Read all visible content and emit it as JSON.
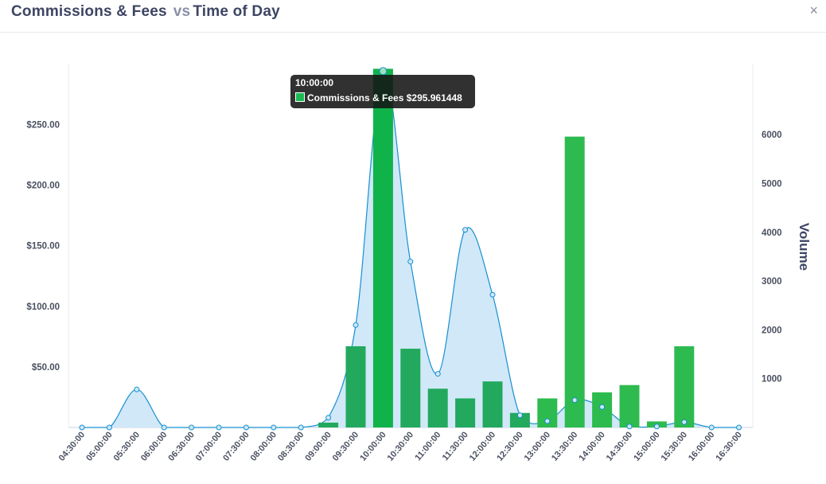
{
  "header": {
    "title_left": "Commissions & Fees",
    "title_vs": "vs",
    "title_right": "Time of Day",
    "close_label": "×"
  },
  "tooltip": {
    "time": "10:00:00",
    "series_label": "Commissions & Fees",
    "value": "$295.961448",
    "swatch_color": "#1db954"
  },
  "colors": {
    "bar": "#2dbb4f",
    "bar_dark": "#22a95e",
    "bar_highlight": "#0fb34a",
    "area_fill": "#cfe7f8",
    "line": "#1690d0"
  },
  "chart_data": {
    "type": "bar+area",
    "x": [
      "04:30:00",
      "05:00:00",
      "05:30:00",
      "06:00:00",
      "06:30:00",
      "07:00:00",
      "07:30:00",
      "08:00:00",
      "08:30:00",
      "09:00:00",
      "09:30:00",
      "10:00:00",
      "10:30:00",
      "11:00:00",
      "11:30:00",
      "12:00:00",
      "12:30:00",
      "13:00:00",
      "13:30:00",
      "14:00:00",
      "14:30:00",
      "15:00:00",
      "15:30:00",
      "16:00:00",
      "16:30:00"
    ],
    "series": [
      {
        "name": "Commissions & Fees",
        "type": "bar",
        "axis": "left",
        "values": [
          null,
          null,
          null,
          null,
          null,
          null,
          null,
          null,
          null,
          4,
          67,
          295.961448,
          65,
          32,
          24,
          38,
          12,
          24,
          240,
          29,
          35,
          5,
          67,
          null,
          null
        ]
      },
      {
        "name": "Volume",
        "type": "area",
        "axis": "right",
        "values": [
          0,
          0,
          780,
          0,
          0,
          0,
          0,
          0,
          0,
          200,
          2100,
          7300,
          3400,
          1100,
          4050,
          2720,
          250,
          130,
          560,
          420,
          20,
          20,
          110,
          0,
          0
        ]
      }
    ],
    "y_left": {
      "ticks": [
        "$50.00",
        "$100.00",
        "$150.00",
        "$200.00",
        "$250.00"
      ],
      "tick_values": [
        50,
        100,
        150,
        200,
        250
      ],
      "range": [
        0,
        300
      ]
    },
    "y_right": {
      "label": "Volume",
      "ticks": [
        "1000",
        "2000",
        "3000",
        "4000",
        "5000",
        "6000"
      ],
      "tick_values": [
        1000,
        2000,
        3000,
        4000,
        5000,
        6000
      ],
      "range": [
        0,
        7500
      ]
    },
    "highlight_category": "10:00:00"
  }
}
